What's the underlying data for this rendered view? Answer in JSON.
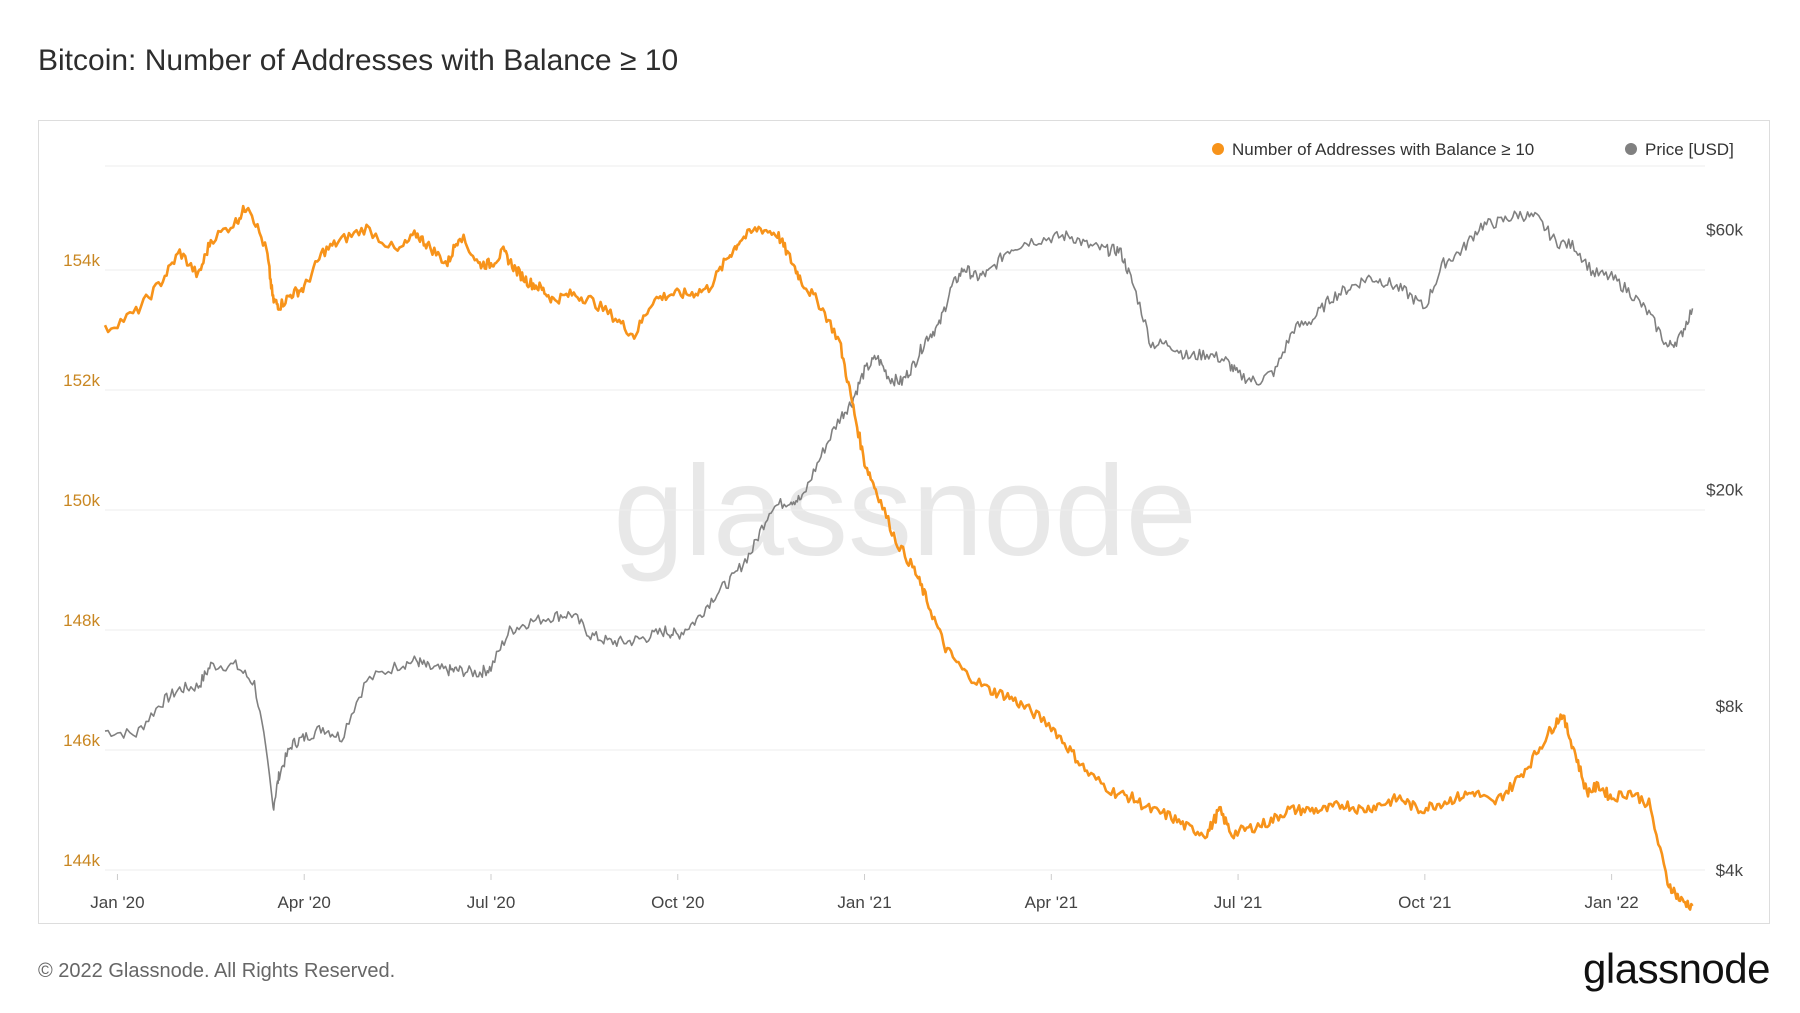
{
  "title": "Bitcoin: Number of Addresses with Balance ≥ 10",
  "footer": "© 2022 Glassnode. All Rights Reserved.",
  "brand": "glassnode",
  "watermark": "glassnode",
  "colors": {
    "addresses": "#f7931a",
    "price": "#808080",
    "grid": "#eeeeee"
  },
  "chart_data": {
    "type": "line",
    "title": "Bitcoin: Number of Addresses with Balance ≥ 10",
    "legend_position": "top-right",
    "legend": [
      "Number of Addresses with Balance ≥ 10",
      "Price [USD]"
    ],
    "x_ticks": [
      "Jan '20",
      "Apr '20",
      "Jul '20",
      "Oct '20",
      "Jan '21",
      "Apr '21",
      "Jul '21",
      "Oct '21",
      "Jan '22"
    ],
    "x_tick_months": [
      0,
      3,
      6,
      9,
      12,
      15,
      18,
      21,
      24
    ],
    "x_range_months": [
      -0.2,
      25.5
    ],
    "y_left": {
      "label": "",
      "ticks": [
        "144k",
        "146k",
        "148k",
        "150k",
        "152k",
        "154k"
      ],
      "tick_values": [
        144000,
        146000,
        148000,
        150000,
        152000,
        154000
      ],
      "range": [
        144000,
        156000
      ]
    },
    "y_right": {
      "label": "",
      "scale": "log",
      "ticks": [
        "$4k",
        "$8k",
        "$20k",
        "$60k"
      ],
      "tick_values": [
        4000,
        8000,
        20000,
        60000
      ],
      "range": [
        4000,
        84000
      ]
    },
    "series": [
      {
        "name": "Number of Addresses with Balance ≥ 10",
        "axis": "left",
        "x": [
          -0.2,
          0.3,
          0.7,
          1.0,
          1.3,
          1.5,
          1.9,
          2.1,
          2.4,
          2.5,
          2.6,
          2.8,
          3.0,
          3.3,
          3.6,
          4.0,
          4.5,
          4.8,
          5.0,
          5.3,
          5.5,
          5.8,
          6.0,
          6.2,
          6.4,
          6.6,
          6.8,
          7.0,
          7.3,
          7.6,
          8.0,
          8.3,
          8.6,
          8.9,
          9.2,
          9.5,
          9.8,
          10.0,
          10.3,
          10.6,
          10.8,
          11.0,
          11.3,
          11.6,
          11.8,
          12.0,
          12.2,
          12.5,
          12.8,
          13.0,
          13.3,
          13.6,
          14.0,
          14.3,
          14.6,
          15.0,
          15.3,
          15.6,
          16.0,
          16.3,
          16.6,
          16.9,
          17.2,
          17.5,
          17.7,
          17.9,
          18.2,
          18.5,
          18.8,
          19.1,
          19.4,
          19.7,
          20.0,
          20.3,
          20.6,
          20.9,
          21.2,
          21.5,
          21.8,
          22.1,
          22.4,
          22.7,
          23.0,
          23.2,
          23.4,
          23.6,
          23.8,
          24.0,
          24.3,
          24.6,
          24.9,
          25.1,
          25.3
        ],
        "values": [
          153000,
          153300,
          153800,
          154300,
          153900,
          154500,
          154800,
          155100,
          154300,
          153500,
          153400,
          153600,
          153700,
          154300,
          154500,
          154700,
          154300,
          154600,
          154400,
          154100,
          154600,
          154100,
          154100,
          154300,
          154000,
          153800,
          153700,
          153500,
          153600,
          153500,
          153200,
          152900,
          153500,
          153600,
          153600,
          153700,
          154200,
          154500,
          154700,
          154600,
          154200,
          153800,
          153400,
          152800,
          151800,
          150800,
          150300,
          149500,
          149000,
          148500,
          147700,
          147300,
          147000,
          146900,
          146700,
          146400,
          146000,
          145600,
          145300,
          145200,
          145000,
          144900,
          144700,
          144600,
          145000,
          144600,
          144700,
          144800,
          145000,
          145000,
          145000,
          145100,
          145000,
          145100,
          145200,
          145000,
          145100,
          145200,
          145300,
          145100,
          145400,
          145800,
          146300,
          146600,
          146000,
          145300,
          145400,
          145200,
          145300,
          145100,
          143800,
          143500,
          143400
        ]
      },
      {
        "name": "Price [USD]",
        "axis": "right",
        "x": [
          -0.2,
          0.3,
          0.7,
          1.0,
          1.3,
          1.5,
          1.9,
          2.2,
          2.5,
          2.6,
          2.8,
          3.0,
          3.3,
          3.6,
          4.0,
          4.5,
          4.8,
          5.0,
          5.3,
          5.5,
          5.8,
          6.0,
          6.3,
          6.6,
          7.0,
          7.3,
          7.6,
          7.9,
          8.2,
          8.5,
          8.8,
          9.0,
          9.3,
          9.6,
          9.9,
          10.2,
          10.5,
          10.8,
          11.0,
          11.3,
          11.6,
          11.8,
          12.0,
          12.2,
          12.4,
          12.6,
          12.8,
          13.0,
          13.2,
          13.4,
          13.6,
          13.8,
          14.0,
          14.3,
          14.6,
          15.0,
          15.3,
          15.6,
          15.9,
          16.1,
          16.3,
          16.6,
          16.9,
          17.2,
          17.5,
          17.8,
          18.0,
          18.3,
          18.6,
          18.9,
          19.2,
          19.5,
          19.8,
          20.1,
          20.4,
          20.7,
          21.0,
          21.3,
          21.6,
          21.9,
          22.2,
          22.5,
          22.8,
          23.1,
          23.4,
          23.7,
          24.0,
          24.3,
          24.6,
          24.9,
          25.1,
          25.3
        ],
        "values": [
          7200,
          7100,
          8100,
          8600,
          8700,
          9500,
          9500,
          8800,
          5200,
          6000,
          6800,
          7000,
          7300,
          7000,
          8900,
          9500,
          9700,
          9400,
          9300,
          9300,
          9200,
          9400,
          11000,
          11400,
          11700,
          11800,
          10800,
          10500,
          10500,
          10700,
          11000,
          10800,
          11500,
          12800,
          13800,
          15500,
          18500,
          19100,
          19200,
          23000,
          27000,
          29000,
          33000,
          35000,
          32000,
          31500,
          34000,
          38000,
          40000,
          47000,
          51000,
          49000,
          50000,
          55000,
          57000,
          58000,
          58500,
          56000,
          55000,
          55000,
          48000,
          37000,
          37000,
          35000,
          35500,
          34500,
          32500,
          31500,
          33000,
          39500,
          41000,
          45000,
          47000,
          49000,
          48000,
          46000,
          43000,
          52000,
          55000,
          61000,
          62000,
          64000,
          63000,
          57000,
          56000,
          50000,
          49000,
          46000,
          42000,
          36500,
          38000,
          43000
        ]
      }
    ]
  }
}
